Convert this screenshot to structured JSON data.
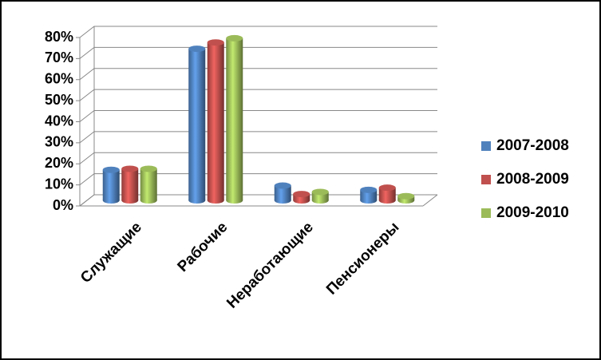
{
  "chart_data": {
    "type": "bar3d",
    "categories": [
      "Служащие",
      "Рабочие",
      "Неработающие",
      "Пенсионеры"
    ],
    "series": [
      {
        "name": "2007-2008",
        "color": "#4f81bd",
        "values": [
          14.5,
          72,
          7,
          5
        ]
      },
      {
        "name": "2008-2009",
        "color": "#c0504d",
        "values": [
          15,
          75,
          3,
          6
        ]
      },
      {
        "name": "2009-2010",
        "color": "#9bbb59",
        "values": [
          15,
          77,
          4,
          2
        ]
      }
    ],
    "ylim": [
      0,
      80
    ],
    "yticks": [
      {
        "value": 0,
        "label": "0%"
      },
      {
        "value": 10,
        "label": "10%"
      },
      {
        "value": 20,
        "label": "20%"
      },
      {
        "value": 30,
        "label": "30%"
      },
      {
        "value": 40,
        "label": "40%"
      },
      {
        "value": 50,
        "label": "50%"
      },
      {
        "value": 60,
        "label": "60%"
      },
      {
        "value": 70,
        "label": "70%"
      },
      {
        "value": 80,
        "label": "80%"
      }
    ],
    "grid": true,
    "legend": "right"
  }
}
